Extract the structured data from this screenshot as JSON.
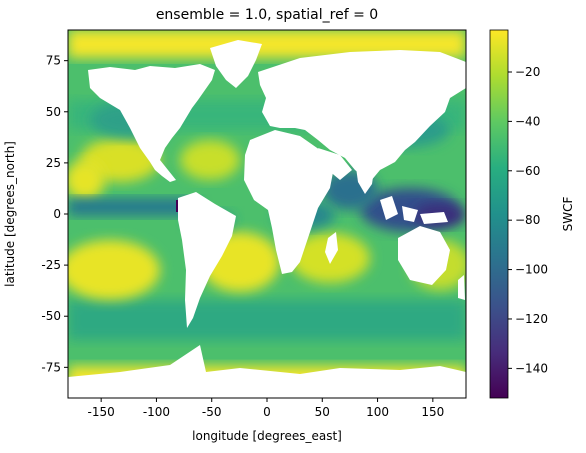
{
  "figure": {
    "title": "ensemble = 1.0, spatial_ref = 0",
    "xlabel": "longitude [degrees_east]",
    "ylabel": "latitude [degrees_north]"
  },
  "chart_data": {
    "type": "heatmap",
    "title": "ensemble = 1.0, spatial_ref = 0",
    "xlabel": "longitude [degrees_east]",
    "ylabel": "latitude [degrees_north]",
    "xlim": [
      -180,
      180
    ],
    "ylim": [
      -90,
      90
    ],
    "x_ticks": [
      -150,
      -100,
      -50,
      0,
      50,
      100,
      150
    ],
    "y_ticks": [
      -75,
      -50,
      -25,
      0,
      25,
      50,
      75
    ],
    "colorbar": {
      "label": "SWCF",
      "colormap": "viridis",
      "vmin": -152,
      "vmax": -3,
      "ticks": [
        -140,
        -120,
        -100,
        -80,
        -60,
        -40,
        -20
      ]
    },
    "land_color": "#ffffff",
    "approx_values": [
      {
        "region": "high latitude / polar oceans",
        "value": -10
      },
      {
        "region": "subtropical oceans",
        "value": -25
      },
      {
        "region": "mid-latitude storm tracks",
        "value": -55
      },
      {
        "region": "equatorial Pacific ITCZ",
        "value": -85
      },
      {
        "region": "western Pacific warm pool",
        "value": -110
      },
      {
        "region": "coast of Colombia",
        "value": -150
      }
    ]
  }
}
